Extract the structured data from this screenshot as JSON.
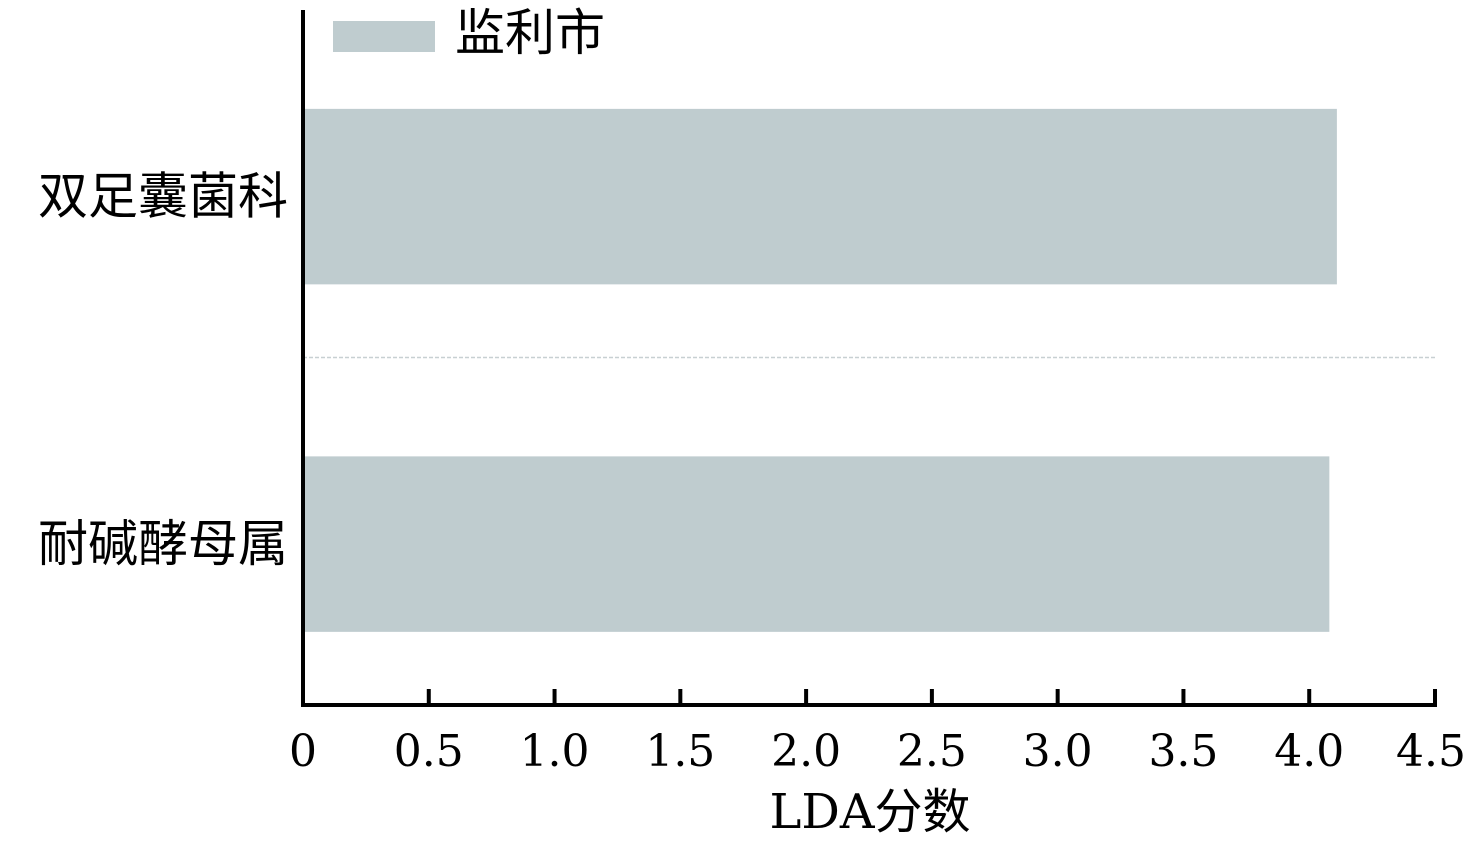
{
  "chart_data": {
    "type": "bar",
    "orientation": "horizontal",
    "categories": [
      "双足囊菌科",
      "耐碱酵母属"
    ],
    "series": [
      {
        "name": "监利市",
        "values": [
          4.11,
          4.08
        ],
        "color": "#bfcccf"
      }
    ],
    "xlabel": "LDA分数",
    "ylabel": "",
    "xlim": [
      0,
      4.5
    ],
    "xticks": [
      "0",
      "0.5",
      "1.0",
      "1.5",
      "2.0",
      "2.5",
      "3.0",
      "3.5",
      "4.0",
      "4.5"
    ],
    "grid": false,
    "legend_position": "top-left"
  }
}
